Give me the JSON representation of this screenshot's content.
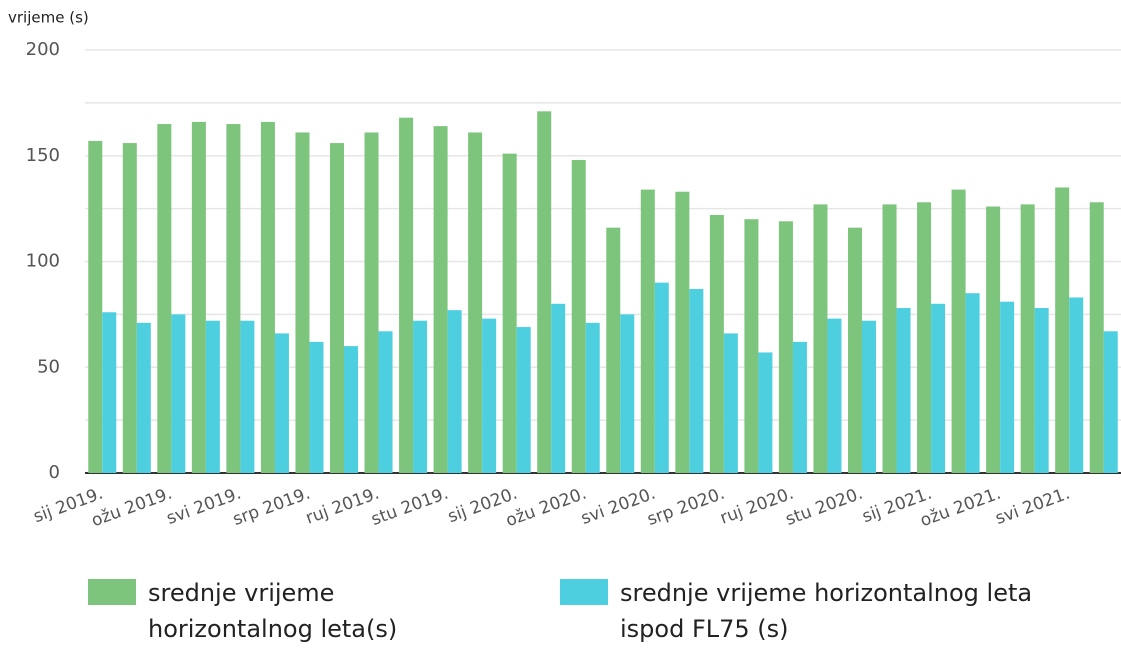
{
  "chart_data": {
    "type": "bar",
    "ylabel": "vrijeme (s)",
    "categories": [
      "sij 2019.",
      null,
      "ožu 2019.",
      null,
      "svi 2019.",
      null,
      "srp 2019.",
      null,
      "ruj 2019.",
      null,
      "stu 2019.",
      null,
      "sij 2020.",
      null,
      "ožu 2020.",
      null,
      "svi 2020.",
      null,
      "srp 2020.",
      null,
      "ruj 2020.",
      null,
      "stu 2020.",
      null,
      "sij 2021.",
      null,
      "ožu 2021.",
      null,
      "svi 2021.",
      null
    ],
    "series": [
      {
        "name": "srednje vrijeme horizontalnog leta(s)",
        "color": "#7dc47d",
        "values": [
          157,
          156,
          165,
          166,
          165,
          166,
          161,
          156,
          161,
          168,
          164,
          161,
          151,
          171,
          148,
          116,
          134,
          133,
          122,
          120,
          119,
          127,
          116,
          127,
          128,
          134,
          126,
          127,
          135,
          128
        ]
      },
      {
        "name": "srednje vrijeme horizontalnog leta ispod FL75 (s)",
        "color": "#4dcfe0",
        "values": [
          76,
          71,
          75,
          72,
          72,
          66,
          62,
          60,
          67,
          72,
          77,
          73,
          69,
          80,
          71,
          75,
          90,
          87,
          66,
          57,
          62,
          73,
          72,
          78,
          80,
          85,
          81,
          78,
          83,
          67
        ]
      }
    ],
    "ylim": [
      0,
      200
    ],
    "yticks": [
      0,
      50,
      100,
      150,
      200
    ],
    "minor_gridlines": [
      25,
      75,
      125,
      175
    ],
    "grid": true
  }
}
